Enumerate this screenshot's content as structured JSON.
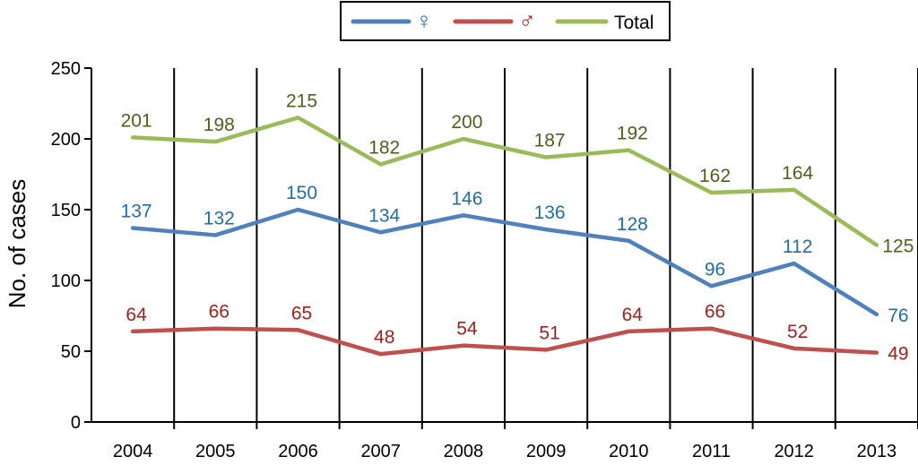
{
  "chart_data": {
    "type": "line",
    "title": "",
    "xlabel": "",
    "ylabel": "No. of cases",
    "ylim": [
      0,
      250
    ],
    "yticks": [
      0,
      50,
      100,
      150,
      200,
      250
    ],
    "categories": [
      "2004",
      "2005",
      "2006",
      "2007",
      "2008",
      "2009",
      "2010",
      "2011",
      "2012",
      "2013"
    ],
    "grid": "vertical",
    "legend": "top-center",
    "series": [
      {
        "name": "♀",
        "color": "#4f81bd",
        "label_color": "#1f6fa5",
        "values": [
          137,
          132,
          150,
          134,
          146,
          136,
          128,
          96,
          112,
          76
        ]
      },
      {
        "name": "♂",
        "color": "#c0504d",
        "label_color": "#a3201e",
        "values": [
          64,
          66,
          65,
          48,
          54,
          51,
          64,
          66,
          52,
          49
        ]
      },
      {
        "name": "Total",
        "color": "#9bbb59",
        "label_color": "#4f5f1d",
        "values": [
          201,
          198,
          215,
          182,
          200,
          187,
          192,
          162,
          164,
          125
        ]
      }
    ]
  }
}
